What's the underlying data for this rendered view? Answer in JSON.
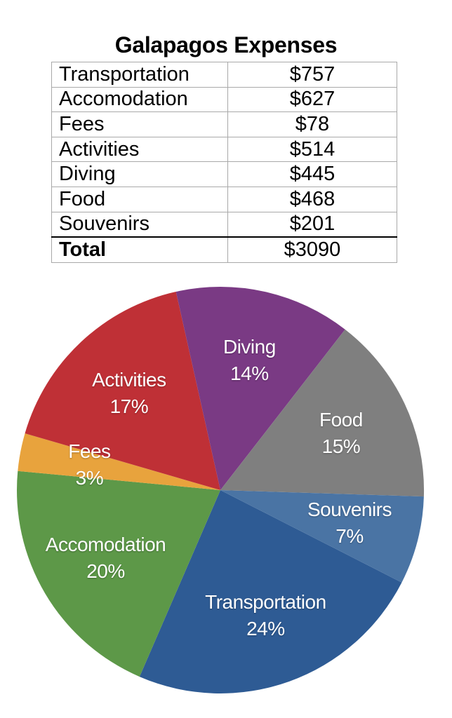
{
  "title": "Galapagos Expenses",
  "table": {
    "rows": [
      {
        "label": "Transportation",
        "value": "$757",
        "is_total": false
      },
      {
        "label": "Accomodation",
        "value": "$627",
        "is_total": false
      },
      {
        "label": "Fees",
        "value": "$78",
        "is_total": false
      },
      {
        "label": "Activities",
        "value": "$514",
        "is_total": false
      },
      {
        "label": "Diving",
        "value": "$445",
        "is_total": false
      },
      {
        "label": "Food",
        "value": "$468",
        "is_total": false
      },
      {
        "label": "Souvenirs",
        "value": "$201",
        "is_total": false
      },
      {
        "label": "Total",
        "value": "$3090",
        "is_total": true
      }
    ]
  },
  "chart_data": {
    "type": "pie",
    "title": "Galapagos Expenses",
    "slices": [
      {
        "label": "Transportation",
        "value_usd": 757,
        "percent": 24,
        "percent_label": "24%",
        "color": "#2E5B94"
      },
      {
        "label": "Accomodation",
        "value_usd": 627,
        "percent": 20,
        "percent_label": "20%",
        "color": "#5D9848"
      },
      {
        "label": "Fees",
        "value_usd": 78,
        "percent": 3,
        "percent_label": "3%",
        "color": "#E8A33D"
      },
      {
        "label": "Activities",
        "value_usd": 514,
        "percent": 17,
        "percent_label": "17%",
        "color": "#BF3036"
      },
      {
        "label": "Diving",
        "value_usd": 445,
        "percent": 14,
        "percent_label": "14%",
        "color": "#7A3A84"
      },
      {
        "label": "Food",
        "value_usd": 468,
        "percent": 15,
        "percent_label": "15%",
        "color": "#7F7F7F"
      },
      {
        "label": "Souvenirs",
        "value_usd": 201,
        "percent": 7,
        "percent_label": "7%",
        "color": "#4A74A4"
      }
    ],
    "total_usd": 3090,
    "start_angle_cw_from_12": 117,
    "direction": "clockwise",
    "legend_position": "none",
    "label_style": "name and percent inside slices, white text"
  }
}
